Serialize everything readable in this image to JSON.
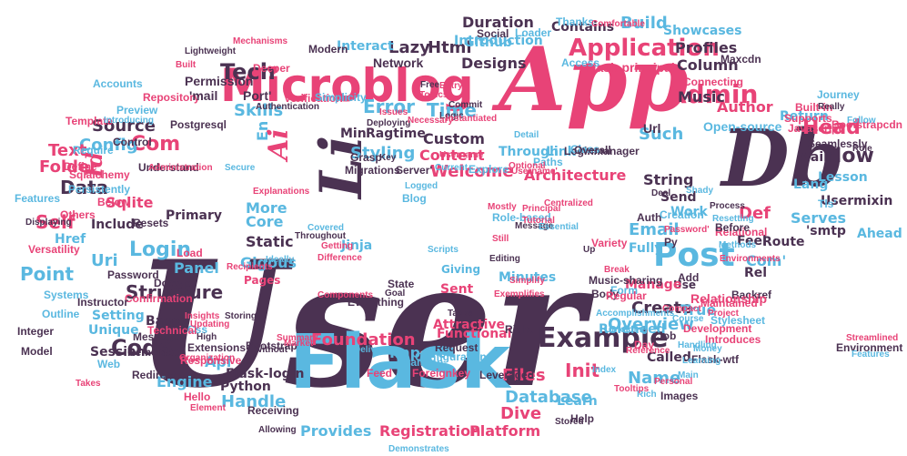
{
  "colors": {
    "pink": "#e84377",
    "blue": "#5ab8e0",
    "purple": "#4b3252",
    "background": "#ffffff"
  },
  "words": [
    {
      "text": "User",
      "color": "purple"
    },
    {
      "text": "Flask",
      "color": "blue"
    },
    {
      "text": "App",
      "color": "pink"
    },
    {
      "text": "Db",
      "color": "purple"
    },
    {
      "text": "Microblog",
      "color": "pink"
    },
    {
      "text": "Ai",
      "color": "pink"
    },
    {
      "text": "Li",
      "color": "purple"
    },
    {
      "text": "Admin",
      "color": "pink"
    },
    {
      "text": "Post",
      "color": "blue"
    },
    {
      "text": "Example",
      "color": "purple"
    },
    {
      "text": "Tech",
      "color": "purple"
    },
    {
      "text": "Application",
      "color": "pink"
    },
    {
      "text": "Build",
      "color": "blue"
    },
    {
      "text": "Email",
      "color": "blue"
    },
    {
      "text": "Login",
      "color": "blue"
    },
    {
      "text": "Code",
      "color": "purple"
    },
    {
      "text": "Head",
      "color": "pink"
    },
    {
      "text": "Now",
      "color": "purple"
    },
    {
      "text": "Error",
      "color": "blue"
    },
    {
      "text": "Time",
      "color": "blue"
    },
    {
      "text": "Structure",
      "color": "purple"
    },
    {
      "text": "Database",
      "color": "blue"
    },
    {
      "text": "Dive",
      "color": "pink"
    },
    {
      "text": "Init",
      "color": "pink"
    },
    {
      "text": "Name",
      "color": "blue"
    },
    {
      "text": "Files",
      "color": "pink"
    },
    {
      "text": "Com",
      "color": "pink"
    },
    {
      "text": "En",
      "color": "blue"
    },
    {
      "text": "Id",
      "color": "pink"
    },
    {
      "text": "Data",
      "color": "purple"
    },
    {
      "text": "Self",
      "color": "pink"
    },
    {
      "text": "Uri",
      "color": "blue"
    },
    {
      "text": "Point",
      "color": "blue"
    },
    {
      "text": "Html",
      "color": "purple"
    },
    {
      "text": "Lazy",
      "color": "purple"
    },
    {
      "text": "Github",
      "color": "blue"
    },
    {
      "text": "Designs",
      "color": "purple"
    },
    {
      "text": "Author",
      "color": "pink"
    },
    {
      "text": "Profiles",
      "color": "purple"
    },
    {
      "text": "Column",
      "color": "purple"
    },
    {
      "text": "Music",
      "color": "purple"
    },
    {
      "text": "Skills",
      "color": "blue"
    },
    {
      "text": "Repository",
      "color": "pink"
    },
    {
      "text": "'mail",
      "color": "purple"
    },
    {
      "text": "Port'",
      "color": "purple"
    },
    {
      "text": "Permission",
      "color": "purple"
    },
    {
      "text": "Source",
      "color": "purple"
    },
    {
      "text": "Config",
      "color": "blue"
    },
    {
      "text": "Text",
      "color": "pink"
    },
    {
      "text": "Folder",
      "color": "pink"
    },
    {
      "text": "Sqlite",
      "color": "pink"
    },
    {
      "text": "Include",
      "color": "purple"
    },
    {
      "text": "Href",
      "color": "blue"
    },
    {
      "text": "Primary",
      "color": "purple"
    },
    {
      "text": "Panel",
      "color": "blue"
    },
    {
      "text": "Static",
      "color": "purple"
    },
    {
      "text": "Gigous",
      "color": "blue"
    },
    {
      "text": "Core",
      "color": "blue"
    },
    {
      "text": "More",
      "color": "blue"
    },
    {
      "text": "Pages",
      "color": "pink"
    },
    {
      "text": "Jinja",
      "color": "blue"
    },
    {
      "text": "Sent",
      "color": "pink"
    },
    {
      "text": "Giving",
      "color": "blue"
    },
    {
      "text": "Welcome",
      "color": "pink"
    },
    {
      "text": "Content",
      "color": "pink"
    },
    {
      "text": "Custom",
      "color": "purple"
    },
    {
      "text": "Styling",
      "color": "blue"
    },
    {
      "text": "Min",
      "color": "purple"
    },
    {
      "text": "Ragtime",
      "color": "purple"
    },
    {
      "text": "Such",
      "color": "blue"
    },
    {
      "text": "Link",
      "color": "blue"
    },
    {
      "text": "Architecture",
      "color": "pink"
    },
    {
      "text": "String",
      "color": "purple"
    },
    {
      "text": "Send",
      "color": "purple"
    },
    {
      "text": "Work",
      "color": "blue"
    },
    {
      "text": "Def",
      "color": "pink"
    },
    {
      "text": "Serves",
      "color": "blue"
    },
    {
      "text": "Fully",
      "color": "blue"
    },
    {
      "text": "Feel",
      "color": "purple"
    },
    {
      "text": "Route",
      "color": "purple"
    },
    {
      "text": "Com'",
      "color": "blue"
    },
    {
      "text": "Rel",
      "color": "purple"
    },
    {
      "text": "Use",
      "color": "purple"
    },
    {
      "text": "Manage",
      "color": "pink"
    },
    {
      "text": "Create",
      "color": "purple"
    },
    {
      "text": "True",
      "color": "blue"
    },
    {
      "text": "Roleneed",
      "color": "blue"
    },
    {
      "text": "Overview",
      "color": "blue"
    },
    {
      "text": "Import",
      "color": "blue"
    },
    {
      "text": "Functional",
      "color": "pink"
    },
    {
      "text": "Foundation",
      "color": "pink"
    },
    {
      "text": "Handle",
      "color": "blue"
    },
    {
      "text": "Engine",
      "color": "blue"
    },
    {
      "text": "Flask-login",
      "color": "purple"
    },
    {
      "text": "Python",
      "color": "purple"
    },
    {
      "text": "Provides",
      "color": "blue"
    },
    {
      "text": "Registration",
      "color": "pink"
    },
    {
      "text": "Platform",
      "color": "pink"
    },
    {
      "text": "Learn",
      "color": "blue"
    },
    {
      "text": "Called",
      "color": "purple"
    },
    {
      "text": "Api",
      "color": "blue"
    },
    {
      "text": "Session",
      "color": "purple"
    },
    {
      "text": "Setting",
      "color": "blue"
    },
    {
      "text": "Based",
      "color": "purple"
    },
    {
      "text": "Message",
      "color": "purple"
    },
    {
      "text": "Unique",
      "color": "blue"
    },
    {
      "text": "Confirmation",
      "color": "pink"
    },
    {
      "text": "Instructor",
      "color": "purple"
    },
    {
      "text": "Doctype",
      "color": "purple"
    },
    {
      "text": "Minutes",
      "color": "blue"
    },
    {
      "text": "Contains",
      "color": "purple"
    },
    {
      "text": "Duration",
      "color": "purple"
    },
    {
      "text": "Introduction",
      "color": "blue"
    },
    {
      "text": "Showcases",
      "color": "blue"
    },
    {
      "text": "Interact",
      "color": "blue"
    },
    {
      "text": "Modern",
      "color": "purple"
    },
    {
      "text": "Network",
      "color": "purple"
    },
    {
      "text": "Flask-principal",
      "color": "pink"
    },
    {
      "text": "Maxcdn",
      "color": "purple"
    },
    {
      "text": "Open-source",
      "color": "blue"
    },
    {
      "text": "Javascript",
      "color": "pink"
    },
    {
      "text": "Mail",
      "color": "purple"
    },
    {
      "text": "Lang",
      "color": "blue"
    },
    {
      "text": "Usermixin",
      "color": "purple"
    },
    {
      "text": "'smtp",
      "color": "purple"
    },
    {
      "text": "Ahead",
      "color": "blue"
    },
    {
      "text": "Tls'",
      "color": "blue"
    },
    {
      "text": "Return",
      "color": "blue"
    },
    {
      "text": "Loginmanager",
      "color": "purple"
    },
    {
      "text": "Class",
      "color": "blue"
    },
    {
      "text": "Through",
      "color": "blue"
    },
    {
      "text": "Paths",
      "color": "blue"
    },
    {
      "text": "Introduces",
      "color": "pink"
    },
    {
      "text": "Backref",
      "color": "purple"
    },
    {
      "text": "Relationship",
      "color": "pink"
    },
    {
      "text": "Add",
      "color": "purple"
    },
    {
      "text": "Form",
      "color": "blue"
    },
    {
      "text": "Url",
      "color": "purple"
    },
    {
      "text": "Verification",
      "color": "pink"
    },
    {
      "text": "Authentication",
      "color": "purple"
    },
    {
      "text": "Simplicity",
      "color": "blue"
    },
    {
      "text": "Preview",
      "color": "blue"
    },
    {
      "text": "Accounts",
      "color": "blue"
    },
    {
      "text": "Sqlalchemy",
      "color": "pink"
    },
    {
      "text": "Features",
      "color": "blue"
    },
    {
      "text": "Resets",
      "color": "purple"
    },
    {
      "text": "Load",
      "color": "pink"
    },
    {
      "text": "Password",
      "color": "purple"
    },
    {
      "text": "Systems",
      "color": "blue"
    },
    {
      "text": "Outline",
      "color": "blue"
    },
    {
      "text": "Css",
      "color": "blue"
    },
    {
      "text": "Bootstrap",
      "color": "purple"
    },
    {
      "text": "Extensions",
      "color": "purple"
    },
    {
      "text": "Hello",
      "color": "pink"
    },
    {
      "text": "Remember",
      "color": "purple"
    },
    {
      "text": "Redirect",
      "color": "purple"
    },
    {
      "text": "Brandon",
      "color": "blue"
    },
    {
      "text": "Feed",
      "color": "pink"
    },
    {
      "text": "Foreignkey",
      "color": "pink"
    },
    {
      "text": "Leveraged",
      "color": "purple"
    },
    {
      "text": "Attractive",
      "color": "pink"
    },
    {
      "text": "Configuration",
      "color": "blue"
    },
    {
      "text": "Receiving",
      "color": "purple"
    },
    {
      "text": "Demonstrates",
      "color": "blue"
    },
    {
      "text": "Allowing",
      "color": "purple"
    },
    {
      "text": "Help",
      "color": "purple"
    },
    {
      "text": "Stored",
      "color": "purple"
    },
    {
      "text": "Index",
      "color": "blue"
    },
    {
      "text": "Job",
      "color": "purple"
    },
    {
      "text": "Development",
      "color": "pink"
    },
    {
      "text": "Stylesheet",
      "color": "blue"
    },
    {
      "text": "Project",
      "color": "pink"
    },
    {
      "text": "Maintained",
      "color": "pink"
    },
    {
      "text": "Relational",
      "color": "pink"
    },
    {
      "text": "Methods",
      "color": "blue"
    },
    {
      "text": "Lesson",
      "color": "blue"
    },
    {
      "text": "Environment",
      "color": "purple"
    },
    {
      "text": "Seamlessly",
      "color": "purple"
    },
    {
      "text": "Supports",
      "color": "pink"
    },
    {
      "text": "Role",
      "color": "purple"
    },
    {
      "text": "Bootstrapcdn",
      "color": "pink"
    },
    {
      "text": "Built-in",
      "color": "pink"
    },
    {
      "text": "Journey",
      "color": "blue"
    },
    {
      "text": "Really",
      "color": "purple"
    },
    {
      "text": "Follow",
      "color": "blue"
    },
    {
      "text": "Thanks",
      "color": "blue"
    },
    {
      "text": "Comfortable",
      "color": "pink"
    },
    {
      "text": "Social",
      "color": "purple"
    },
    {
      "text": "Loader",
      "color": "blue"
    },
    {
      "text": "Free",
      "color": "purple"
    },
    {
      "text": "Topics",
      "color": "pink"
    },
    {
      "text": "Commit",
      "color": "purple"
    },
    {
      "text": "Logic",
      "color": "purple"
    },
    {
      "text": "Username",
      "color": "pink"
    },
    {
      "text": "Current",
      "color": "blue"
    },
    {
      "text": "Explore",
      "color": "blue"
    },
    {
      "text": "Migrations",
      "color": "purple"
    },
    {
      "text": "Server'",
      "color": "purple"
    },
    {
      "text": "Key",
      "color": "purple"
    },
    {
      "text": "Grasp",
      "color": "purple"
    },
    {
      "text": "Logged",
      "color": "blue"
    },
    {
      "text": "Blog",
      "color": "blue"
    },
    {
      "text": "Still",
      "color": "pink"
    },
    {
      "text": "Scripts",
      "color": "blue"
    },
    {
      "text": "Editing",
      "color": "purple"
    },
    {
      "text": "Simplify",
      "color": "pink"
    },
    {
      "text": "Tasks",
      "color": "purple"
    },
    {
      "text": "Right",
      "color": "purple"
    },
    {
      "text": "Request",
      "color": "purple"
    },
    {
      "text": "Delivery",
      "color": "blue"
    },
    {
      "text": "Everything",
      "color": "purple"
    },
    {
      "text": "State",
      "color": "purple"
    },
    {
      "text": "Goal",
      "color": "purple"
    },
    {
      "text": "Integer",
      "color": "purple"
    },
    {
      "text": "Model",
      "color": "purple"
    },
    {
      "text": "Takes",
      "color": "pink"
    },
    {
      "text": "Technical",
      "color": "pink"
    },
    {
      "text": "Updating",
      "color": "pink"
    },
    {
      "text": "High",
      "color": "purple"
    },
    {
      "text": "Without",
      "color": "purple"
    },
    {
      "text": "Responsive",
      "color": "pink"
    },
    {
      "text": "Web",
      "color": "blue"
    },
    {
      "text": "Versatility",
      "color": "pink"
    },
    {
      "text": "Persistently",
      "color": "blue"
    },
    {
      "text": "Others",
      "color": "pink"
    },
    {
      "text": "Below",
      "color": "pink"
    },
    {
      "text": "Template",
      "color": "pink"
    },
    {
      "text": "Postgresql",
      "color": "purple"
    },
    {
      "text": "Control",
      "color": "purple"
    },
    {
      "text": "Define",
      "color": "pink"
    },
    {
      "text": "Require",
      "color": "blue"
    },
    {
      "text": "Understand",
      "color": "purple"
    },
    {
      "text": "Access",
      "color": "blue"
    },
    {
      "text": "Connecting",
      "color": "pink"
    },
    {
      "text": "Overall",
      "color": "purple"
    },
    {
      "text": "Music-sharing",
      "color": "purple"
    },
    {
      "text": "Body",
      "color": "purple"
    },
    {
      "text": "Regular",
      "color": "pink"
    },
    {
      "text": "Break",
      "color": "pink"
    },
    {
      "text": "Up",
      "color": "purple"
    },
    {
      "text": "Variety",
      "color": "pink"
    },
    {
      "text": "Auth",
      "color": "purple"
    },
    {
      "text": "Creation",
      "color": "blue"
    },
    {
      "text": "Process",
      "color": "purple"
    },
    {
      "text": "Before",
      "color": "purple"
    },
    {
      "text": "Py",
      "color": "purple"
    },
    {
      "text": "Deal",
      "color": "purple"
    },
    {
      "text": "Flask-wtf",
      "color": "purple"
    },
    {
      "text": "Main",
      "color": "blue"
    },
    {
      "text": "Rich",
      "color": "blue"
    },
    {
      "text": "Images",
      "color": "purple"
    },
    {
      "text": "Day",
      "color": "pink"
    },
    {
      "text": "Detail",
      "color": "blue"
    },
    {
      "text": "Entry",
      "color": "pink"
    },
    {
      "text": "Issues",
      "color": "pink"
    },
    {
      "text": "Deploying",
      "color": "purple"
    },
    {
      "text": "Necessary",
      "color": "pink"
    },
    {
      "text": "Introducing",
      "color": "blue"
    },
    {
      "text": "Lightweight",
      "color": "purple"
    },
    {
      "text": "Built",
      "color": "pink"
    },
    {
      "text": "Role-based",
      "color": "blue"
    },
    {
      "text": "Deeper",
      "color": "pink"
    },
    {
      "text": "Principal",
      "color": "pink"
    },
    {
      "text": "Message",
      "color": "purple"
    },
    {
      "text": "Centralized",
      "color": "pink"
    },
    {
      "text": "Handling",
      "color": "blue"
    },
    {
      "text": "Learning",
      "color": "blue"
    },
    {
      "text": "Money",
      "color": "blue"
    },
    {
      "text": "Course",
      "color": "blue"
    },
    {
      "text": "Compact",
      "color": "pink"
    },
    {
      "text": "Shady",
      "color": "blue"
    },
    {
      "text": "Covered",
      "color": "blue"
    },
    {
      "text": "Getting",
      "color": "pink"
    },
    {
      "text": "Difference",
      "color": "pink"
    },
    {
      "text": "Components",
      "color": "pink"
    },
    {
      "text": "Summary",
      "color": "pink"
    },
    {
      "text": "Market",
      "color": "pink"
    },
    {
      "text": "Tooltips",
      "color": "pink"
    },
    {
      "text": "Element",
      "color": "pink"
    },
    {
      "text": "Throughout",
      "color": "purple"
    },
    {
      "text": "Secure",
      "color": "blue"
    },
    {
      "text": "Recipients",
      "color": "pink"
    },
    {
      "text": "Ideally",
      "color": "blue"
    },
    {
      "text": "Organization",
      "color": "pink"
    },
    {
      "text": "Displaying",
      "color": "purple"
    },
    {
      "text": "Insights",
      "color": "pink"
    },
    {
      "text": "Administration",
      "color": "pink"
    },
    {
      "text": "Storing",
      "color": "purple"
    },
    {
      "text": "Explanations",
      "color": "pink"
    },
    {
      "text": "Instantiated",
      "color": "pink"
    },
    {
      "text": "Optional",
      "color": "pink"
    },
    {
      "text": "Username'",
      "color": "pink"
    },
    {
      "text": "Mostly",
      "color": "pink"
    },
    {
      "text": "Tutorial",
      "color": "pink"
    },
    {
      "text": "Essential",
      "color": "blue"
    },
    {
      "text": "Exemplifies",
      "color": "pink"
    },
    {
      "text": "Accomplishments",
      "color": "blue"
    },
    {
      "text": "Unfolding",
      "color": "blue"
    },
    {
      "text": "Reference",
      "color": "pink"
    },
    {
      "text": "Personal",
      "color": "pink"
    },
    {
      "text": "Mechanisms",
      "color": "pink"
    },
    {
      "text": "Password'",
      "color": "pink"
    },
    {
      "text": "Resetting",
      "color": "blue"
    },
    {
      "text": "Environments",
      "color": "pink"
    },
    {
      "text": "Streamlined",
      "color": "pink"
    },
    {
      "text": "Features",
      "color": "blue"
    }
  ]
}
